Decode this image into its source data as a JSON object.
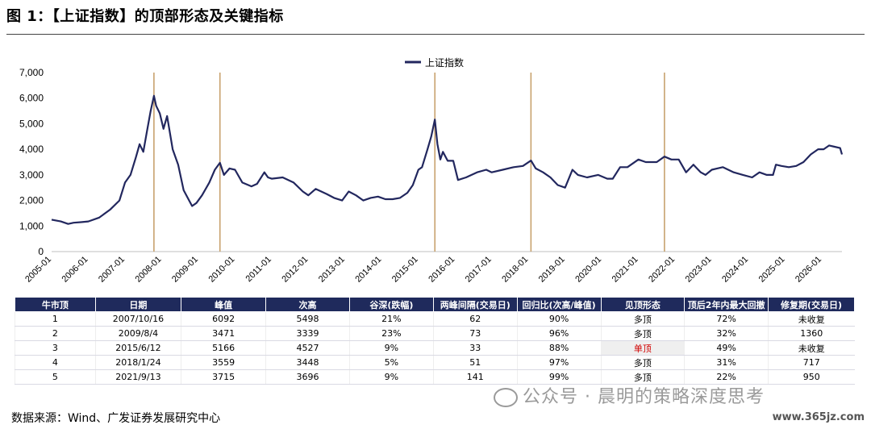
{
  "figure_title": "图 1：【上证指数】的顶部形态及关键指标",
  "chart_data": {
    "type": "line",
    "legend": "上证指数",
    "legend_position": "top-center",
    "ylim": [
      0,
      7000
    ],
    "yticks": [
      "0",
      "1,000",
      "2,000",
      "3,000",
      "4,000",
      "5,000",
      "6,000",
      "7,000"
    ],
    "xticks": [
      "2005-01",
      "2006-01",
      "2007-01",
      "2008-01",
      "2009-01",
      "2010-01",
      "2011-01",
      "2012-01",
      "2013-01",
      "2014-01",
      "2015-01",
      "2016-01",
      "2017-01",
      "2018-01",
      "2019-01",
      "2020-01",
      "2021-01",
      "2022-01",
      "2023-01",
      "2024-01",
      "2025-01",
      "2026-01"
    ],
    "xrange": [
      2005.0,
      2026.55
    ],
    "line_color": "#22275e",
    "vline_color": "#c8a26e",
    "vlines": [
      2007.79,
      2009.59,
      2015.45,
      2018.07,
      2021.71
    ],
    "series": [
      {
        "name": "上证指数",
        "x": [
          2005.0,
          2005.25,
          2005.45,
          2005.6,
          2005.8,
          2006.0,
          2006.3,
          2006.6,
          2006.85,
          2007.0,
          2007.15,
          2007.3,
          2007.4,
          2007.5,
          2007.6,
          2007.7,
          2007.79,
          2007.85,
          2007.95,
          2008.05,
          2008.15,
          2008.3,
          2008.45,
          2008.6,
          2008.75,
          2008.83,
          2008.95,
          2009.1,
          2009.3,
          2009.45,
          2009.59,
          2009.7,
          2009.85,
          2010.0,
          2010.2,
          2010.45,
          2010.6,
          2010.8,
          2010.9,
          2011.0,
          2011.3,
          2011.6,
          2011.85,
          2012.0,
          2012.2,
          2012.5,
          2012.7,
          2012.92,
          2013.1,
          2013.3,
          2013.5,
          2013.7,
          2013.9,
          2014.1,
          2014.3,
          2014.5,
          2014.7,
          2014.85,
          2015.0,
          2015.1,
          2015.25,
          2015.35,
          2015.45,
          2015.52,
          2015.6,
          2015.67,
          2015.8,
          2015.95,
          2016.08,
          2016.3,
          2016.6,
          2016.85,
          2017.0,
          2017.3,
          2017.6,
          2017.85,
          2018.07,
          2018.2,
          2018.4,
          2018.6,
          2018.8,
          2019.0,
          2019.2,
          2019.35,
          2019.6,
          2019.9,
          2020.15,
          2020.3,
          2020.5,
          2020.7,
          2021.0,
          2021.2,
          2021.5,
          2021.71,
          2021.9,
          2022.1,
          2022.3,
          2022.5,
          2022.7,
          2022.83,
          2023.0,
          2023.3,
          2023.6,
          2023.85,
          2024.1,
          2024.3,
          2024.5,
          2024.67,
          2024.75,
          2024.9,
          2025.1,
          2025.3,
          2025.5,
          2025.7,
          2025.9,
          2026.05,
          2026.2,
          2026.35,
          2026.5,
          2026.55
        ],
        "y": [
          1250,
          1180,
          1080,
          1130,
          1150,
          1180,
          1330,
          1650,
          2000,
          2700,
          3000,
          3700,
          4200,
          3900,
          4700,
          5500,
          6092,
          5700,
          5400,
          4800,
          5300,
          4000,
          3400,
          2400,
          2000,
          1780,
          1900,
          2200,
          2700,
          3200,
          3471,
          3000,
          3250,
          3200,
          2700,
          2550,
          2650,
          3100,
          2900,
          2850,
          2900,
          2700,
          2350,
          2200,
          2450,
          2250,
          2100,
          2000,
          2350,
          2200,
          2000,
          2100,
          2150,
          2050,
          2050,
          2100,
          2300,
          2600,
          3200,
          3300,
          4000,
          4500,
          5166,
          4200,
          3600,
          3900,
          3550,
          3550,
          2800,
          2900,
          3100,
          3200,
          3100,
          3200,
          3300,
          3350,
          3559,
          3250,
          3100,
          2900,
          2600,
          2500,
          3200,
          3000,
          2900,
          3000,
          2850,
          2850,
          3300,
          3300,
          3600,
          3500,
          3500,
          3715,
          3600,
          3600,
          3100,
          3400,
          3100,
          3000,
          3200,
          3300,
          3100,
          3000,
          2900,
          3100,
          3000,
          3000,
          3400,
          3350,
          3300,
          3350,
          3500,
          3800,
          4000,
          4000,
          4150,
          4100,
          4050,
          3800
        ]
      }
    ]
  },
  "table": {
    "headers": [
      "牛市顶",
      "日期",
      "峰值",
      "次高",
      "谷深(跌幅)",
      "两峰间隔(交易日)",
      "回归比(次高/峰值)",
      "见顶形态",
      "顶后2年内最大回撤",
      "修复期(交易日)"
    ],
    "rows": [
      [
        "1",
        "2007/10/16",
        "6092",
        "5498",
        "21%",
        "62",
        "90%",
        "多顶",
        "72%",
        "未收复"
      ],
      [
        "2",
        "2009/8/4",
        "3471",
        "3339",
        "23%",
        "73",
        "96%",
        "多顶",
        "32%",
        "1360"
      ],
      [
        "3",
        "2015/6/12",
        "5166",
        "4527",
        "9%",
        "33",
        "88%",
        "单顶",
        "49%",
        "未收复"
      ],
      [
        "4",
        "2018/1/24",
        "3559",
        "3448",
        "5%",
        "51",
        "97%",
        "多顶",
        "31%",
        "717"
      ],
      [
        "5",
        "2021/9/13",
        "3715",
        "3696",
        "9%",
        "141",
        "99%",
        "多顶",
        "22%",
        "950"
      ]
    ]
  },
  "source": "数据来源：Wind、广发证券发展研究中心",
  "watermark": "公众号 · 晨明的策略深度思考",
  "watermark_site": "www.365jz.com"
}
